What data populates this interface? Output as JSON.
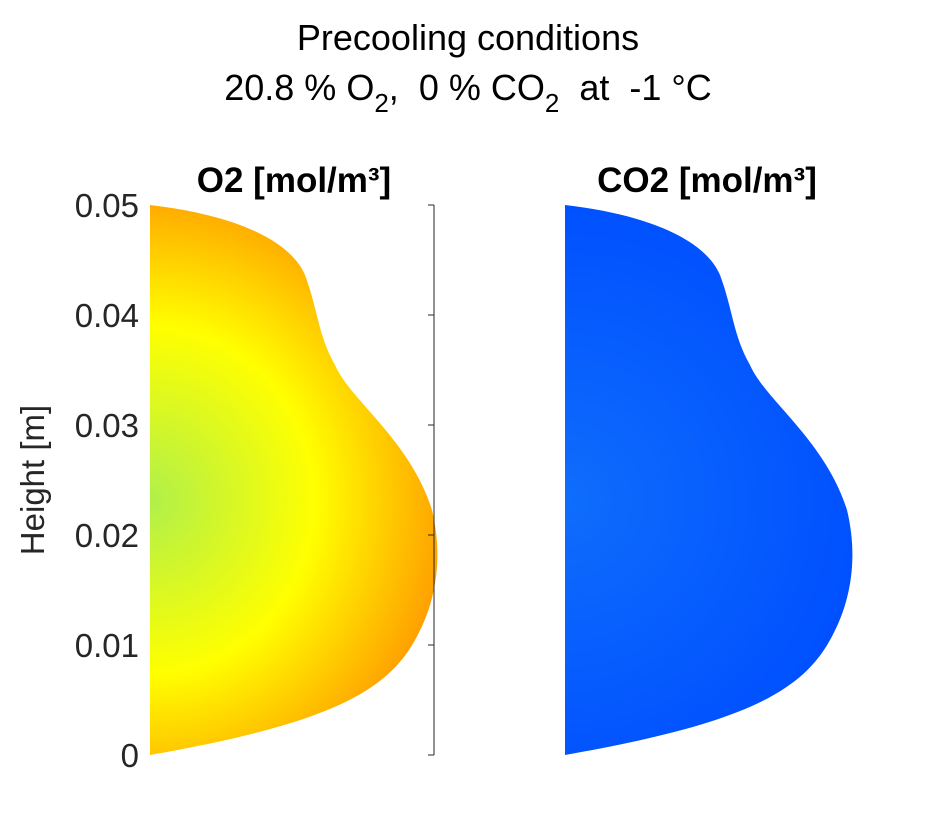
{
  "title": {
    "line1": "Precooling conditions",
    "o2_value": "20.8 % O",
    "o2_sub": "2",
    "sep": ",  ",
    "co2_value": "0 % CO",
    "co2_sub": "2",
    "temp": "  at  -1 °C"
  },
  "chart_data": [
    {
      "type": "heatmap",
      "title": "O2 [mol/m³]",
      "ylabel": "Height [m]",
      "ylim": [
        0,
        0.05
      ],
      "yticks": [
        "0",
        "0.01",
        "0.02",
        "0.03",
        "0.04",
        "0.05"
      ],
      "grid": false,
      "colors": {
        "center": "#b0f04a",
        "mid": "#ffff00",
        "edge": "#ff9e00"
      }
    },
    {
      "type": "heatmap",
      "title": "CO2 [mol/m³]",
      "ylim": [
        0,
        0.05
      ],
      "grid": false,
      "colors": {
        "center": "#0f6dfc",
        "edge": "#0050ff"
      }
    }
  ]
}
